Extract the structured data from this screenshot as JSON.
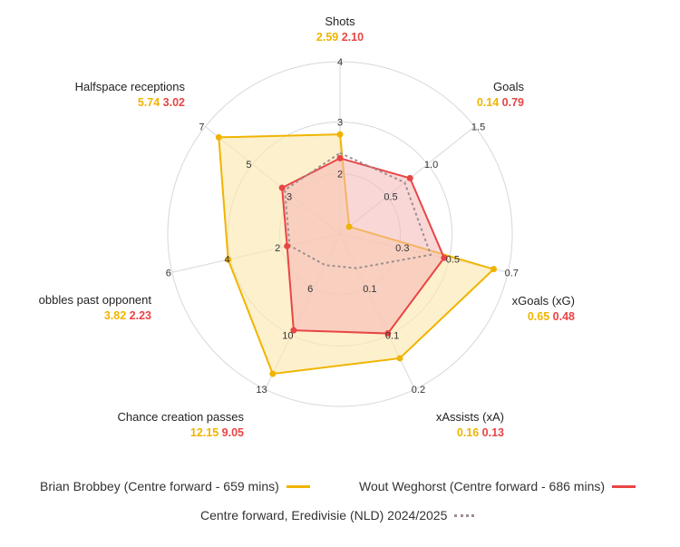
{
  "chart_data": {
    "type": "radar",
    "axes": [
      {
        "name": "Shots",
        "ticks": [
          "2",
          "3",
          "4"
        ],
        "values": [
          2.59,
          2.1
        ]
      },
      {
        "name": "Goals",
        "ticks": [
          "0.5",
          "1.0",
          "1.5"
        ],
        "values": [
          0.14,
          0.79
        ]
      },
      {
        "name": "xGoals (xG)",
        "ticks": [
          "0.3",
          "0.5",
          "0.7"
        ],
        "values": [
          0.65,
          0.48
        ]
      },
      {
        "name": "xAssists (xA)",
        "ticks": [
          "0.1",
          "0.1",
          "0.2"
        ],
        "values": [
          0.16,
          0.13
        ]
      },
      {
        "name": "Chance creation passes",
        "ticks": [
          "6",
          "10",
          "13"
        ],
        "values": [
          12.15,
          9.05
        ]
      },
      {
        "name": "Dribbles past opponent",
        "display_name": "obbles past opponent",
        "ticks": [
          "2",
          "4",
          "6"
        ],
        "values": [
          3.82,
          2.23
        ]
      },
      {
        "name": "Halfspace receptions",
        "ticks": [
          "3",
          "5",
          "7"
        ],
        "values": [
          5.74,
          3.02
        ]
      }
    ],
    "value_labels": [
      [
        "2.59",
        "2.10"
      ],
      [
        "0.14",
        "0.79"
      ],
      [
        "0.65",
        "0.48"
      ],
      [
        "0.16",
        "0.13"
      ],
      [
        "12.15",
        "9.05"
      ],
      [
        "3.82",
        "2.23"
      ],
      [
        "5.74",
        "3.02"
      ]
    ],
    "series": [
      {
        "name": "Brian Brobbey (Centre forward - 659 mins)",
        "color": "#f0b400",
        "fill": "#fce8b0",
        "r": [
          0.578,
          0.068,
          0.915,
          0.8,
          0.9,
          0.666,
          0.9
        ]
      },
      {
        "name": "Wout Weghorst (Centre forward - 686 mins)",
        "color": "#e84545",
        "fill": "#f6b6b6",
        "r": [
          0.44,
          0.52,
          0.62,
          0.64,
          0.62,
          0.315,
          0.43
        ]
      },
      {
        "name": "Centre forward, Eredivisie (NLD) 2024/2025",
        "color": "#9e8f8f",
        "dashed": true,
        "r": [
          0.47,
          0.48,
          0.54,
          0.22,
          0.2,
          0.3,
          0.41
        ]
      }
    ]
  },
  "legend": {
    "row1": [
      "Brian Brobbey (Centre forward - 659 mins)",
      "Wout Weghorst (Centre forward - 686 mins)"
    ],
    "row2": "Centre forward, Eredivisie (NLD) 2024/2025"
  },
  "colors": {
    "player1": "#f0b400",
    "player2": "#e84545",
    "average": "#9e8f8f",
    "grid": "#d7d7de"
  }
}
